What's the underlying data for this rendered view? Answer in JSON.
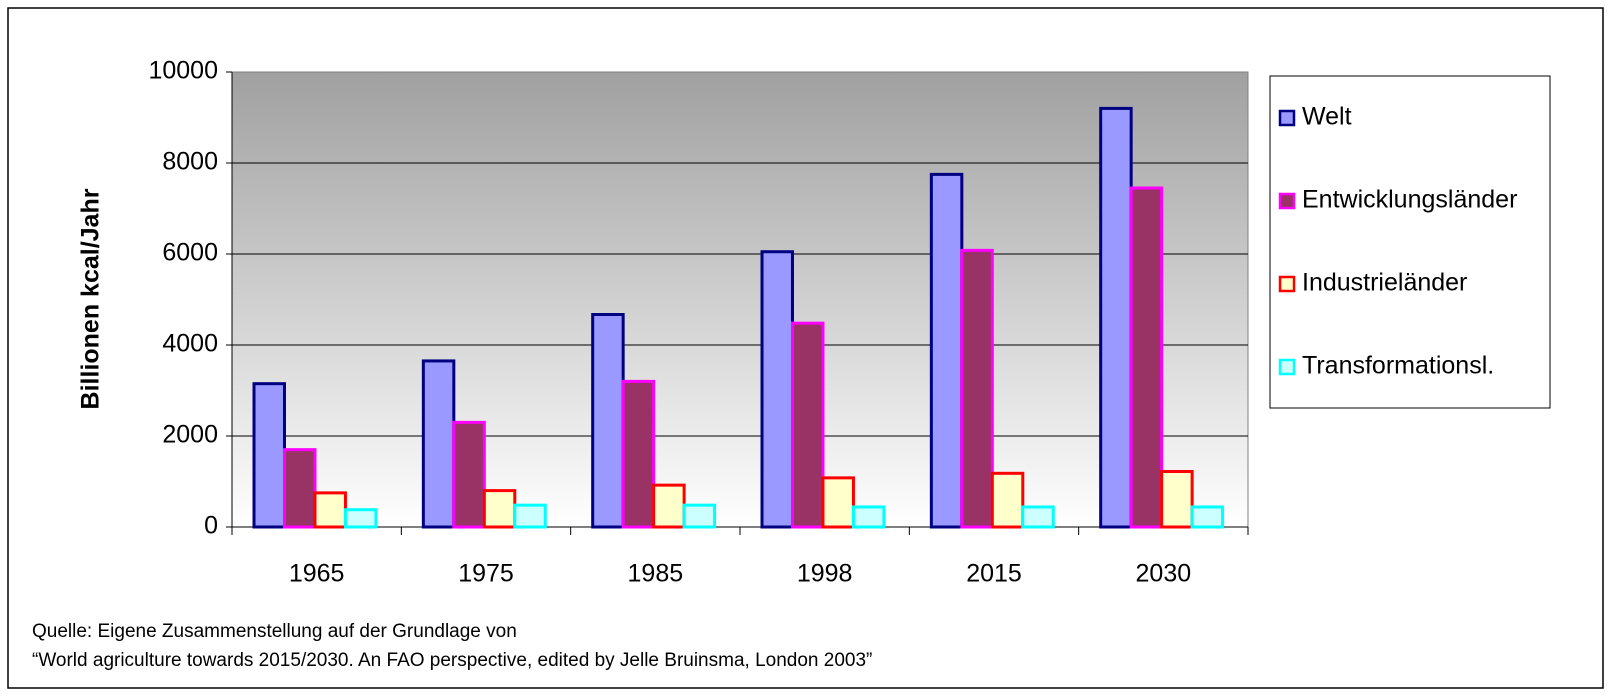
{
  "chart_data": {
    "type": "bar",
    "ylabel": "Billionen kcal/Jahr",
    "categories": [
      "1965",
      "1975",
      "1985",
      "1998",
      "2015",
      "2030"
    ],
    "series": [
      {
        "name": "Welt",
        "color": "#9999ff",
        "edge": "#000080",
        "values": [
          3150,
          3650,
          4670,
          6050,
          7750,
          9200
        ]
      },
      {
        "name": "Entwicklungsländer",
        "color": "#993366",
        "edge": "#ff00ff",
        "values": [
          1700,
          2300,
          3200,
          4480,
          6080,
          7450
        ]
      },
      {
        "name": "Industrieländer",
        "color": "#ffffcc",
        "edge": "#ff0000",
        "values": [
          750,
          800,
          920,
          1080,
          1180,
          1220
        ]
      },
      {
        "name": "Transformationsl.",
        "color": "#ccffff",
        "edge": "#00ffff",
        "values": [
          380,
          480,
          480,
          440,
          440,
          440
        ]
      }
    ],
    "ylim": [
      0,
      10000
    ],
    "yticks": [
      0,
      2000,
      4000,
      6000,
      8000,
      10000
    ],
    "grid": true,
    "legend": "right",
    "source": [
      "Quelle: Eigene Zusammenstellung auf der Grundlage von",
      "“World agriculture towards 2015/2030. An FAO perspective, edited by Jelle Bruinsma, London 2003”"
    ]
  }
}
